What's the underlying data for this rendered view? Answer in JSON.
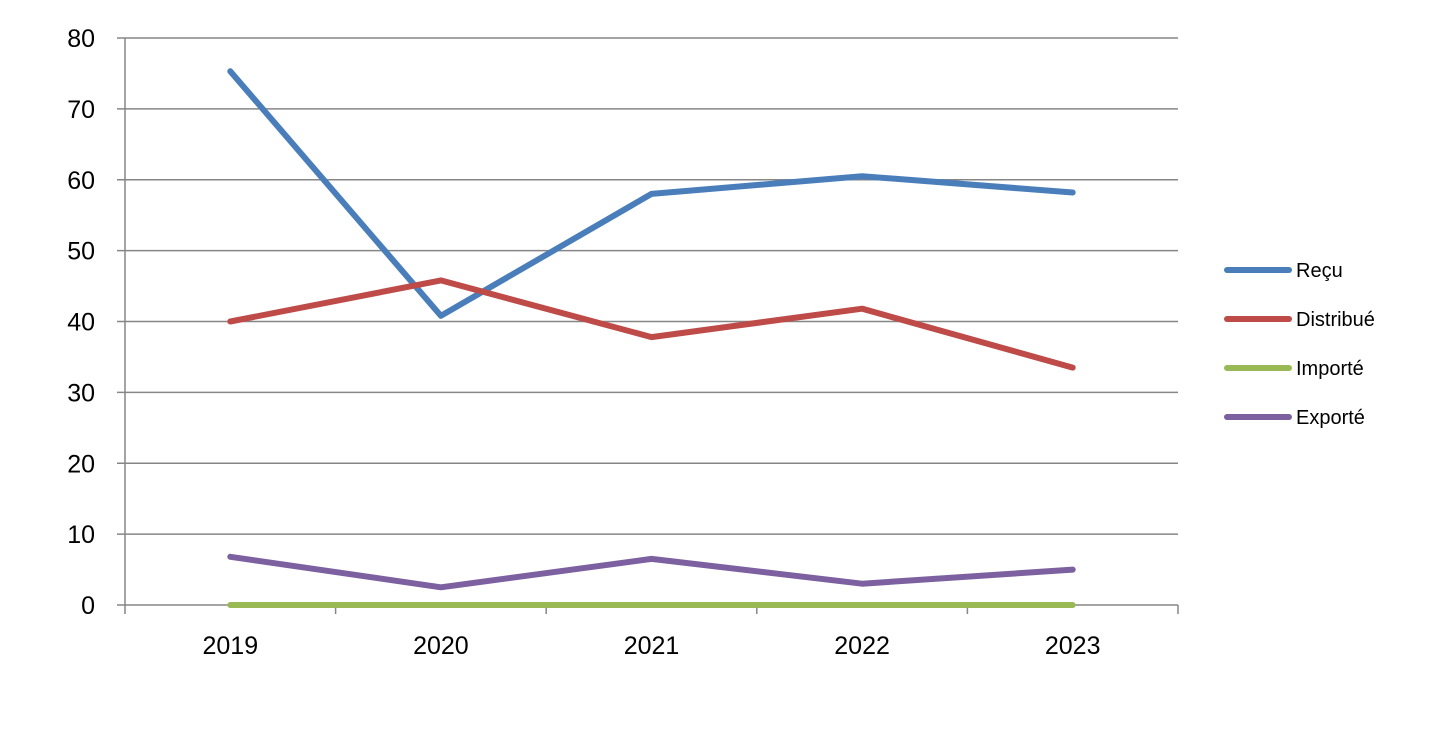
{
  "chart_data": {
    "type": "line",
    "categories": [
      "2019",
      "2020",
      "2021",
      "2022",
      "2023"
    ],
    "series": [
      {
        "name": "Reçu",
        "color": "#4a7ebb",
        "values": [
          75.3,
          40.8,
          58.0,
          60.5,
          58.2
        ]
      },
      {
        "name": "Distribué",
        "color": "#be4b48",
        "values": [
          40.0,
          45.8,
          37.8,
          41.8,
          33.5
        ]
      },
      {
        "name": "Importé",
        "color": "#98b954",
        "values": [
          0,
          0,
          0,
          0,
          0
        ]
      },
      {
        "name": "Exporté",
        "color": "#7d60a0",
        "values": [
          6.8,
          2.5,
          6.5,
          3.0,
          5.0
        ]
      }
    ],
    "yticks": [
      0,
      10,
      20,
      30,
      40,
      50,
      60,
      70,
      80
    ],
    "ylim": [
      0,
      80
    ],
    "grid": true,
    "legend_position": "right"
  }
}
